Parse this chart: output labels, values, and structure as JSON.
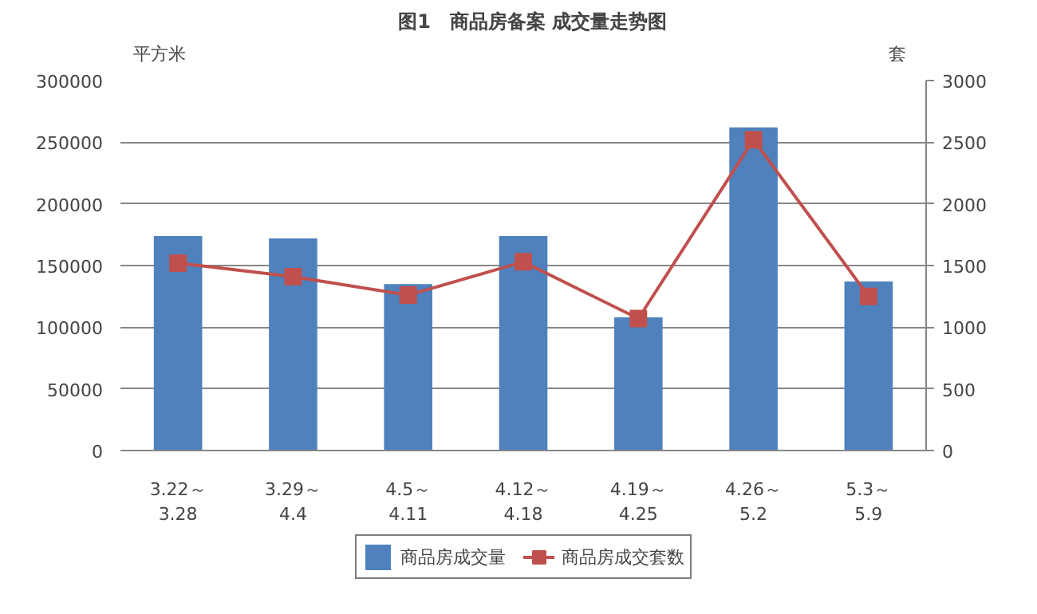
{
  "chart_data": {
    "type": "bar",
    "title": "图1　商品房备案 成交量走势图",
    "ylabel": "平方米",
    "y2label": "套",
    "categories": [
      "3.22～\n3.28",
      "3.29～\n4.4",
      "4.5～\n4.11",
      "4.12～\n4.18",
      "4.19～\n4.25",
      "4.26～\n5.2",
      "5.3～\n5.9"
    ],
    "series": [
      {
        "name": "商品房成交量",
        "color": "#4f81bd",
        "values": [
          174000,
          172000,
          135000,
          174000,
          108000,
          262000,
          137000
        ]
      },
      {
        "name": "商品房成交套数",
        "type": "line",
        "axis": "y2",
        "color": "#c0504d",
        "marker": "square",
        "values": [
          1520,
          1410,
          1260,
          1530,
          1070,
          2520,
          1250
        ]
      }
    ],
    "ylim": [
      0,
      300000
    ],
    "yticks": [
      0,
      50000,
      100000,
      150000,
      200000,
      250000,
      300000
    ],
    "y2lim": [
      0,
      3000
    ],
    "y2ticks": [
      0,
      500,
      1000,
      1500,
      2000,
      2500,
      3000
    ],
    "grid": "y",
    "legend": "bottom"
  }
}
